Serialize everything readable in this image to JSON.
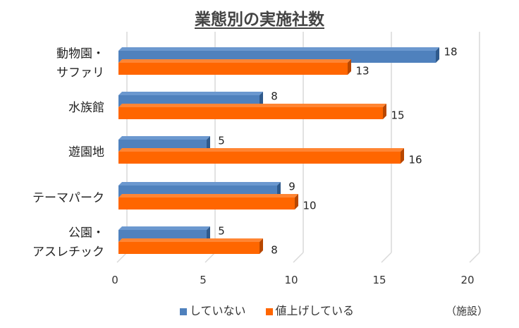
{
  "chart_data": {
    "type": "bar",
    "orientation": "horizontal",
    "style": "3d",
    "title": "業態別の実施社数",
    "categories": [
      [
        "動物園・",
        "サファリ"
      ],
      [
        "水族館"
      ],
      [
        "遊園地"
      ],
      [
        "テーマパーク"
      ],
      [
        "公園・",
        "アスレチック"
      ]
    ],
    "series": [
      {
        "name": "していない",
        "color": "#4F81BD",
        "values": [
          18,
          8,
          5,
          9,
          5
        ]
      },
      {
        "name": "値上げしている",
        "color": "#FF6600",
        "values": [
          13,
          15,
          16,
          10,
          8
        ]
      }
    ],
    "xlim": [
      0,
      20
    ],
    "xticks": [
      "0",
      "5",
      "10",
      "15",
      "20"
    ],
    "unit": "（施設）",
    "grid": true,
    "legend": "bottom"
  }
}
